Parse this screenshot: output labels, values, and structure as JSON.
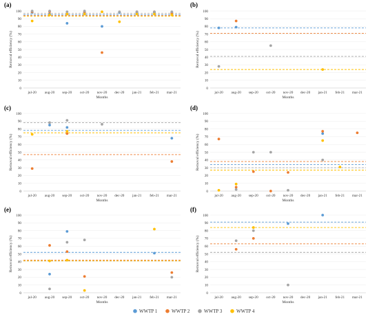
{
  "legend": {
    "items": [
      {
        "label": "WWTP 1",
        "color": "#5b9bd5"
      },
      {
        "label": "WWTP 2",
        "color": "#ed7d31"
      },
      {
        "label": "WWTP 3",
        "color": "#a5a5a5"
      },
      {
        "label": "WWTP 4",
        "color": "#ffc000"
      }
    ]
  },
  "chart_data": [
    {
      "panel": "(a)",
      "type": "scatter",
      "categories": [
        "jul-20",
        "aug-20",
        "sep-20",
        "oct-20",
        "nov-20",
        "dec-20",
        "jan-21",
        "feb-21",
        "mar-21"
      ],
      "xlabel": "Months",
      "ylabel": "Removal efficiency (%)",
      "ylim": [
        0,
        100
      ],
      "yticks": [
        0,
        10,
        20,
        30,
        40,
        50,
        60,
        70,
        80,
        90,
        100
      ],
      "grid": true,
      "series": [
        {
          "name": "WWTP 1",
          "color": "#5b9bd5",
          "points": [
            [
              0,
              98
            ],
            [
              1,
              96
            ],
            [
              2,
              84
            ],
            [
              3,
              98
            ],
            [
              4,
              80
            ],
            [
              5,
              98
            ],
            [
              6,
              98
            ],
            [
              7,
              98
            ],
            [
              8,
              98
            ]
          ],
          "mean": 95
        },
        {
          "name": "WWTP 2",
          "color": "#ed7d31",
          "points": [
            [
              0,
              99
            ],
            [
              1,
              99
            ],
            [
              2,
              96
            ],
            [
              3,
              99
            ],
            [
              4,
              46
            ],
            [
              6,
              99
            ],
            [
              7,
              99
            ],
            [
              8,
              97
            ]
          ],
          "mean": 94
        },
        {
          "name": "WWTP 3",
          "color": "#a5a5a5",
          "points": [
            [
              0,
              100
            ],
            [
              1,
              100
            ],
            [
              2,
              99
            ],
            [
              3,
              100
            ],
            [
              5,
              99
            ],
            [
              6,
              99
            ],
            [
              7,
              99
            ],
            [
              8,
              99
            ]
          ],
          "mean": 97
        },
        {
          "name": "WWTP 4",
          "color": "#ffc000",
          "points": [
            [
              0,
              87
            ],
            [
              1,
              95
            ],
            [
              2,
              96
            ],
            [
              3,
              96
            ],
            [
              4,
              99
            ],
            [
              5,
              86
            ],
            [
              6,
              96
            ],
            [
              7,
              96
            ],
            [
              8,
              95
            ]
          ],
          "mean": 93
        }
      ]
    },
    {
      "panel": "(b)",
      "type": "scatter",
      "categories": [
        "jul-20",
        "aug-20",
        "sep-20",
        "oct-20",
        "nov-20",
        "dec-20",
        "jan-21",
        "feb-21",
        "mar-21"
      ],
      "xlabel": "Months",
      "ylabel": "Removal efficiency (%)",
      "ylim": [
        0,
        100
      ],
      "yticks": [
        0,
        10,
        20,
        30,
        40,
        50,
        60,
        70,
        80,
        90,
        100
      ],
      "grid": true,
      "series": [
        {
          "name": "WWTP 1",
          "color": "#5b9bd5",
          "points": [
            [
              0,
              78
            ],
            [
              1,
              79
            ]
          ],
          "mean": 78
        },
        {
          "name": "WWTP 2",
          "color": "#ed7d31",
          "points": [
            [
              1,
              87
            ]
          ],
          "mean": 71
        },
        {
          "name": "WWTP 3",
          "color": "#a5a5a5",
          "points": [
            [
              0,
              28
            ],
            [
              3,
              55
            ]
          ],
          "mean": 41
        },
        {
          "name": "WWTP 4",
          "color": "#ffc000",
          "points": [
            [
              6,
              24
            ]
          ],
          "mean": 24
        }
      ]
    },
    {
      "panel": "(c)",
      "type": "scatter",
      "categories": [
        "jul-20",
        "aug-20",
        "sep-20",
        "oct-20",
        "nov-20",
        "dec-20",
        "jan-21",
        "feb-21",
        "mar-21"
      ],
      "xlabel": "Months",
      "ylabel": "Removal efficiency (%)",
      "ylim": [
        0,
        100
      ],
      "yticks": [
        0,
        10,
        20,
        30,
        40,
        50,
        60,
        70,
        80,
        90,
        100
      ],
      "grid": true,
      "series": [
        {
          "name": "WWTP 1",
          "color": "#5b9bd5",
          "points": [
            [
              1,
              85
            ],
            [
              2,
              82
            ],
            [
              8,
              68
            ]
          ],
          "mean": 78
        },
        {
          "name": "WWTP 2",
          "color": "#ed7d31",
          "points": [
            [
              0,
              29
            ],
            [
              2,
              74
            ],
            [
              8,
              38
            ]
          ],
          "mean": 47
        },
        {
          "name": "WWTP 3",
          "color": "#a5a5a5",
          "points": [
            [
              1,
              88
            ],
            [
              2,
              91
            ],
            [
              4,
              86
            ]
          ],
          "mean": 88
        },
        {
          "name": "WWTP 4",
          "color": "#ffc000",
          "points": [
            [
              0,
              73
            ],
            [
              2,
              77
            ]
          ],
          "mean": 75
        }
      ]
    },
    {
      "panel": "(d)",
      "type": "scatter",
      "categories": [
        "jul-20",
        "aug-20",
        "sep-20",
        "oct-20",
        "nov-20",
        "dec-20",
        "jan-21",
        "feb-21",
        "mar-21"
      ],
      "xlabel": "Months",
      "ylabel": "Removal efficiency (%)",
      "ylim": [
        0,
        100
      ],
      "yticks": [
        0,
        10,
        20,
        30,
        40,
        50,
        60,
        70,
        80,
        90,
        100
      ],
      "grid": true,
      "series": [
        {
          "name": "WWTP 1",
          "color": "#5b9bd5",
          "points": [
            [
              6,
              74
            ]
          ],
          "mean": 34
        },
        {
          "name": "WWTP 2",
          "color": "#ed7d31",
          "points": [
            [
              0,
              67
            ],
            [
              1,
              5
            ],
            [
              2,
              25
            ],
            [
              3,
              0
            ],
            [
              4,
              24
            ],
            [
              6,
              77
            ],
            [
              8,
              75
            ]
          ],
          "mean": 38
        },
        {
          "name": "WWTP 3",
          "color": "#a5a5a5",
          "points": [
            [
              1,
              2
            ],
            [
              2,
              50
            ],
            [
              3,
              50
            ],
            [
              4,
              1
            ],
            [
              6,
              40
            ]
          ],
          "mean": 30
        },
        {
          "name": "WWTP 4",
          "color": "#ffc000",
          "points": [
            [
              0,
              1
            ],
            [
              1,
              9
            ],
            [
              6,
              65
            ],
            [
              7,
              31
            ]
          ],
          "mean": 27
        }
      ]
    },
    {
      "panel": "(e)",
      "type": "scatter",
      "categories": [
        "jul-20",
        "aug-20",
        "sep-20",
        "oct-20",
        "nov-20",
        "dec-20",
        "jan-21",
        "feb-21",
        "mar-21"
      ],
      "xlabel": "Months",
      "ylabel": "Removal efficiency (%)",
      "ylim": [
        0,
        100
      ],
      "yticks": [
        0,
        10,
        20,
        30,
        40,
        50,
        60,
        70,
        80,
        90,
        100
      ],
      "grid": true,
      "series": [
        {
          "name": "WWTP 1",
          "color": "#5b9bd5",
          "points": [
            [
              1,
              24
            ],
            [
              2,
              79
            ],
            [
              7,
              51
            ]
          ],
          "mean": 52
        },
        {
          "name": "WWTP 2",
          "color": "#ed7d31",
          "points": [
            [
              1,
              61
            ],
            [
              2,
              53
            ],
            [
              3,
              21
            ],
            [
              8,
              26
            ]
          ],
          "mean": 42
        },
        {
          "name": "WWTP 3",
          "color": "#a5a5a5",
          "points": [
            [
              1,
              5
            ],
            [
              2,
              65
            ],
            [
              3,
              68
            ],
            [
              8,
              20
            ]
          ],
          "mean": 41
        },
        {
          "name": "WWTP 4",
          "color": "#ffc000",
          "points": [
            [
              1,
              41
            ],
            [
              2,
              42
            ],
            [
              3,
              3
            ],
            [
              7,
              82
            ]
          ],
          "mean": 41
        }
      ]
    },
    {
      "panel": "(f)",
      "type": "scatter",
      "categories": [
        "jul-20",
        "aug-20",
        "sep-20",
        "oct-20",
        "nov-20",
        "dec-20",
        "jan-21",
        "feb-21",
        "mar-21"
      ],
      "xlabel": "Months",
      "ylabel": "Removal efficiency (%)",
      "ylim": [
        0,
        100
      ],
      "yticks": [
        0,
        10,
        20,
        30,
        40,
        50,
        60,
        70,
        80,
        90,
        100
      ],
      "grid": true,
      "series": [
        {
          "name": "WWTP 1",
          "color": "#5b9bd5",
          "points": [
            [
              4,
              89
            ],
            [
              6,
              100
            ]
          ],
          "mean": 91
        },
        {
          "name": "WWTP 2",
          "color": "#ed7d31",
          "points": [
            [
              1,
              56
            ],
            [
              2,
              70
            ]
          ],
          "mean": 63
        },
        {
          "name": "WWTP 3",
          "color": "#a5a5a5",
          "points": [
            [
              1,
              67
            ],
            [
              2,
              80
            ],
            [
              4,
              10
            ]
          ],
          "mean": 52
        },
        {
          "name": "WWTP 4",
          "color": "#ffc000",
          "points": [
            [
              2,
              84
            ]
          ],
          "mean": 84
        }
      ]
    }
  ]
}
